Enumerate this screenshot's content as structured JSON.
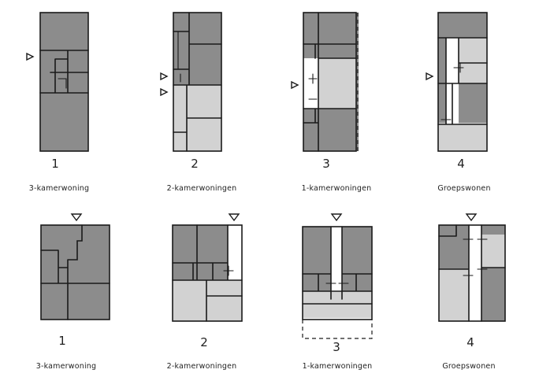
{
  "plans": [
    {
      "number": "1",
      "caption": "3-kamerwoning"
    },
    {
      "number": "2",
      "caption": "2-kamerwoningen"
    },
    {
      "number": "3",
      "caption": "1-kamerwoningen"
    },
    {
      "number": "4",
      "caption": "Groepswonen"
    },
    {
      "number": "1",
      "caption": "3-kamerwoning"
    },
    {
      "number": "2",
      "caption": "2-kamerwoningen"
    },
    {
      "number": "3",
      "caption": "1-kamerwoningen"
    },
    {
      "number": "4",
      "caption": "Groepswonen"
    }
  ],
  "colors": {
    "dark": "#8c8c8c",
    "light": "#d2d2d2",
    "line": "#1a1a1a"
  }
}
